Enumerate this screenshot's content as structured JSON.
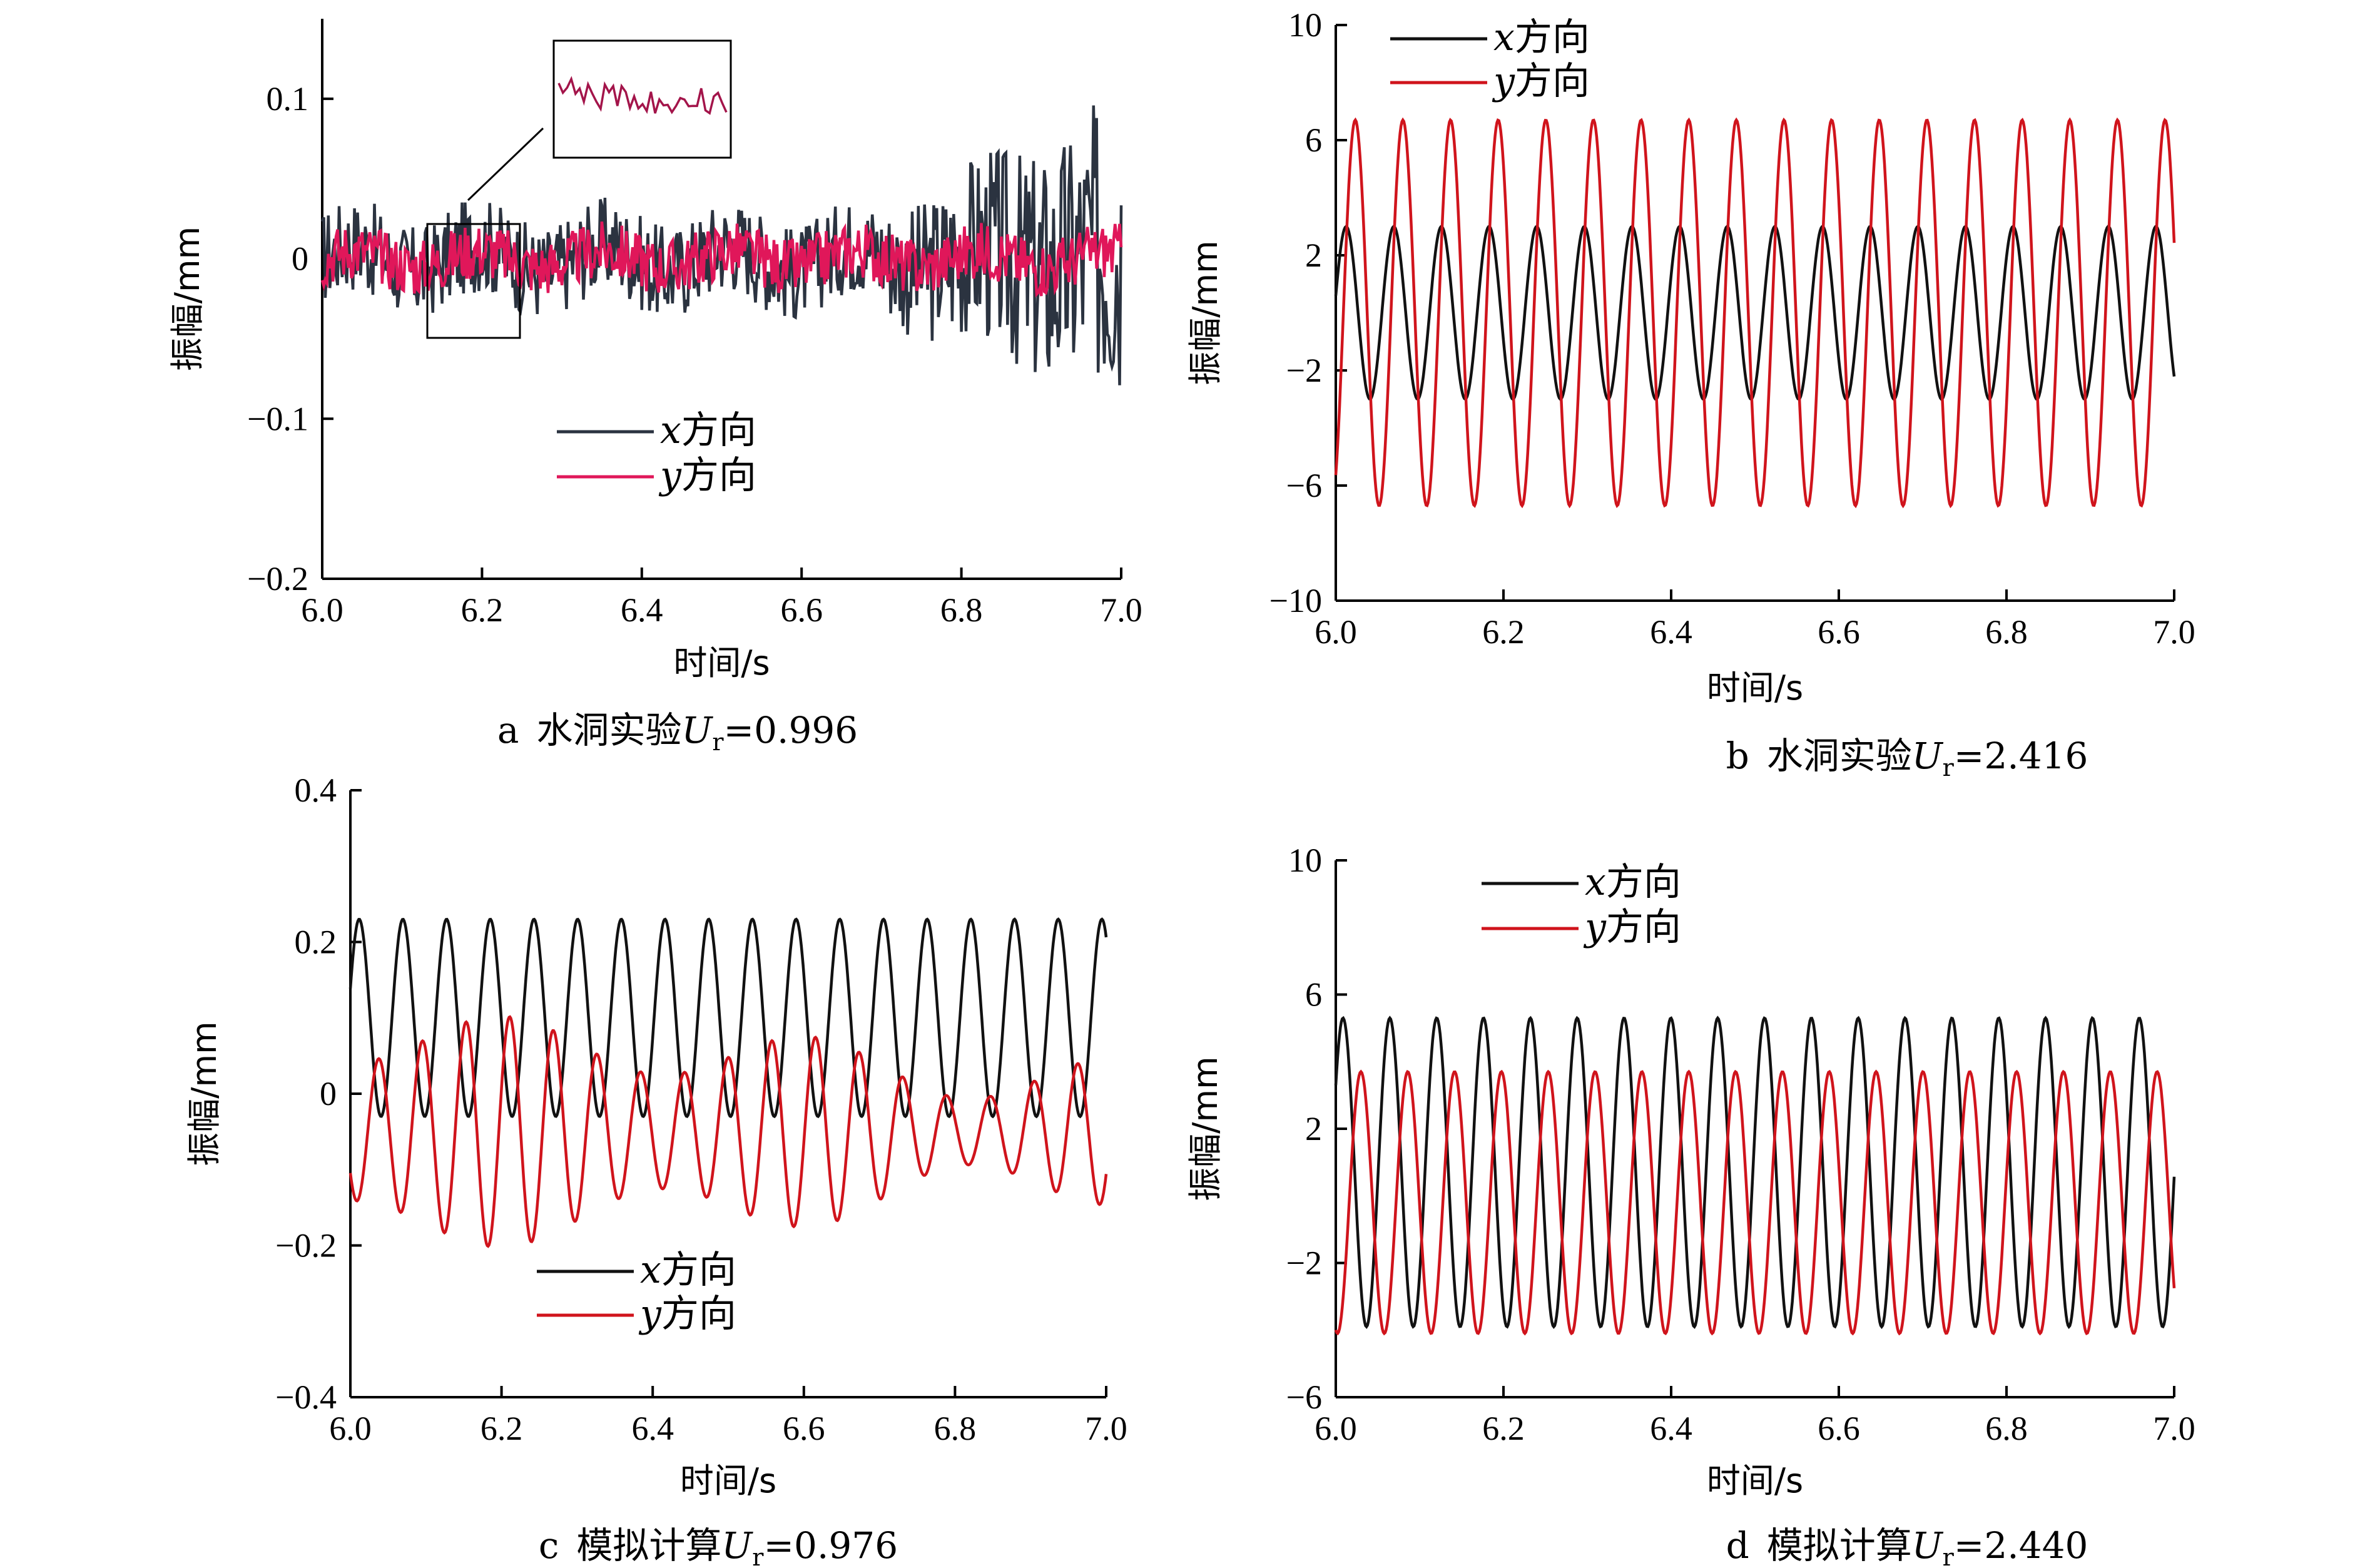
{
  "colors": {
    "x_dark": "#2b3340",
    "y_magenta": "#e0175a",
    "x_black": "#111111",
    "y_red": "#d0141c"
  },
  "chart_data": [
    {
      "id": "a",
      "type": "line",
      "caption": {
        "prefix": "a",
        "text": "水洞实验",
        "sym": "U",
        "sub": "r",
        "value": "=0.996"
      },
      "xlabel": "时间/s",
      "ylabel": "振幅/mm",
      "xlim": [
        6.0,
        7.0
      ],
      "ylim": [
        -0.2,
        0.15
      ],
      "xticks": [
        "6.0",
        "6.2",
        "6.4",
        "6.6",
        "6.8",
        "7.0"
      ],
      "xtickvals": [
        6.0,
        6.2,
        6.4,
        6.6,
        6.8,
        7.0
      ],
      "yticks": [
        "0.1",
        "0",
        "−0.1",
        "−0.2"
      ],
      "ytickvals": [
        0.1,
        0,
        -0.1,
        -0.2
      ],
      "legend": [
        {
          "sym": "x",
          "label": "方向"
        },
        {
          "sym": "y",
          "label": "方向"
        }
      ],
      "series": [
        {
          "name": "x方向",
          "kind": "noise",
          "freq": 0,
          "amp": 0.03,
          "env": "grow_end",
          "color_key": "x_dark"
        },
        {
          "name": "y方向",
          "kind": "noise",
          "freq": 0,
          "amp": 0.018,
          "env": "flat",
          "color_key": "y_magenta"
        }
      ]
    },
    {
      "id": "b",
      "type": "line",
      "caption": {
        "prefix": "b",
        "text": "水洞实验",
        "sym": "U",
        "sub": "r",
        "value": "=2.416"
      },
      "xlabel": "时间/s",
      "ylabel": "振幅/mm",
      "xlim": [
        6.0,
        7.0
      ],
      "ylim": [
        -10,
        10
      ],
      "xticks": [
        "6.0",
        "6.2",
        "6.4",
        "6.6",
        "6.8",
        "7.0"
      ],
      "xtickvals": [
        6.0,
        6.2,
        6.4,
        6.6,
        6.8,
        7.0
      ],
      "yticks": [
        "10",
        "6",
        "2",
        "−2",
        "−6",
        "−10"
      ],
      "ytickvals": [
        10,
        6,
        2,
        -2,
        -6,
        -10
      ],
      "legend": [
        {
          "sym": "x",
          "label": "方向"
        },
        {
          "sym": "y",
          "label": "方向"
        }
      ],
      "series": [
        {
          "name": "x方向",
          "kind": "sine",
          "freq": 17.6,
          "amp": 3.0,
          "phase": 0.2,
          "color_key": "x_black"
        },
        {
          "name": "y方向",
          "kind": "sine",
          "freq": 17.6,
          "amp": 6.7,
          "phase": -1.0,
          "color_key": "y_red"
        }
      ]
    },
    {
      "id": "c",
      "type": "line",
      "caption": {
        "prefix": "c",
        "text": "模拟计算",
        "sym": "U",
        "sub": "r",
        "value": "=0.976"
      },
      "xlabel": "时间/s",
      "ylabel": "振幅/mm",
      "xlim": [
        6.0,
        7.0
      ],
      "ylim": [
        -0.4,
        0.4
      ],
      "xticks": [
        "6.0",
        "6.2",
        "6.4",
        "6.6",
        "6.8",
        "7.0"
      ],
      "xtickvals": [
        6.0,
        6.2,
        6.4,
        6.6,
        6.8,
        7.0
      ],
      "yticks": [
        "0.4",
        "0.2",
        "0",
        "−0.2",
        "−0.4"
      ],
      "ytickvals": [
        0.4,
        0.2,
        0,
        -0.2,
        -0.4
      ],
      "legend": [
        {
          "sym": "x",
          "label": "方向"
        },
        {
          "sym": "y",
          "label": "方向"
        }
      ],
      "series": [
        {
          "name": "x方向",
          "kind": "sine",
          "freq": 17.3,
          "amp": 0.13,
          "offset": 0.1,
          "phase": 0.3,
          "color_key": "x_black"
        },
        {
          "name": "y方向",
          "kind": "sine",
          "freq": 17.3,
          "amp": 0.13,
          "offset": -0.05,
          "phase": -2.5,
          "mod": true,
          "color_key": "y_red"
        }
      ]
    },
    {
      "id": "d",
      "type": "line",
      "caption": {
        "prefix": "d",
        "text": "模拟计算",
        "sym": "U",
        "sub": "r",
        "value": "=2.440"
      },
      "xlabel": "时间/s",
      "ylabel": "振幅/mm",
      "xlim": [
        6.0,
        7.0
      ],
      "ylim": [
        -6,
        10
      ],
      "xticks": [
        "6.0",
        "6.2",
        "6.4",
        "6.6",
        "6.8",
        "7.0"
      ],
      "xtickvals": [
        6.0,
        6.2,
        6.4,
        6.6,
        6.8,
        7.0
      ],
      "yticks": [
        "10",
        "6",
        "2",
        "−2",
        "−6"
      ],
      "ytickvals": [
        10,
        6,
        2,
        -2,
        -6
      ],
      "legend": [
        {
          "sym": "x",
          "label": "方向"
        },
        {
          "sym": "y",
          "label": "方向"
        }
      ],
      "series": [
        {
          "name": "x方向",
          "kind": "sine",
          "freq": 17.9,
          "amp": 4.6,
          "offset": 0.7,
          "phase": 0.6,
          "color_key": "x_black"
        },
        {
          "name": "y方向",
          "kind": "sine",
          "freq": 17.9,
          "amp": 3.9,
          "offset": -0.2,
          "phase": -1.8,
          "color_key": "y_red"
        }
      ]
    }
  ]
}
